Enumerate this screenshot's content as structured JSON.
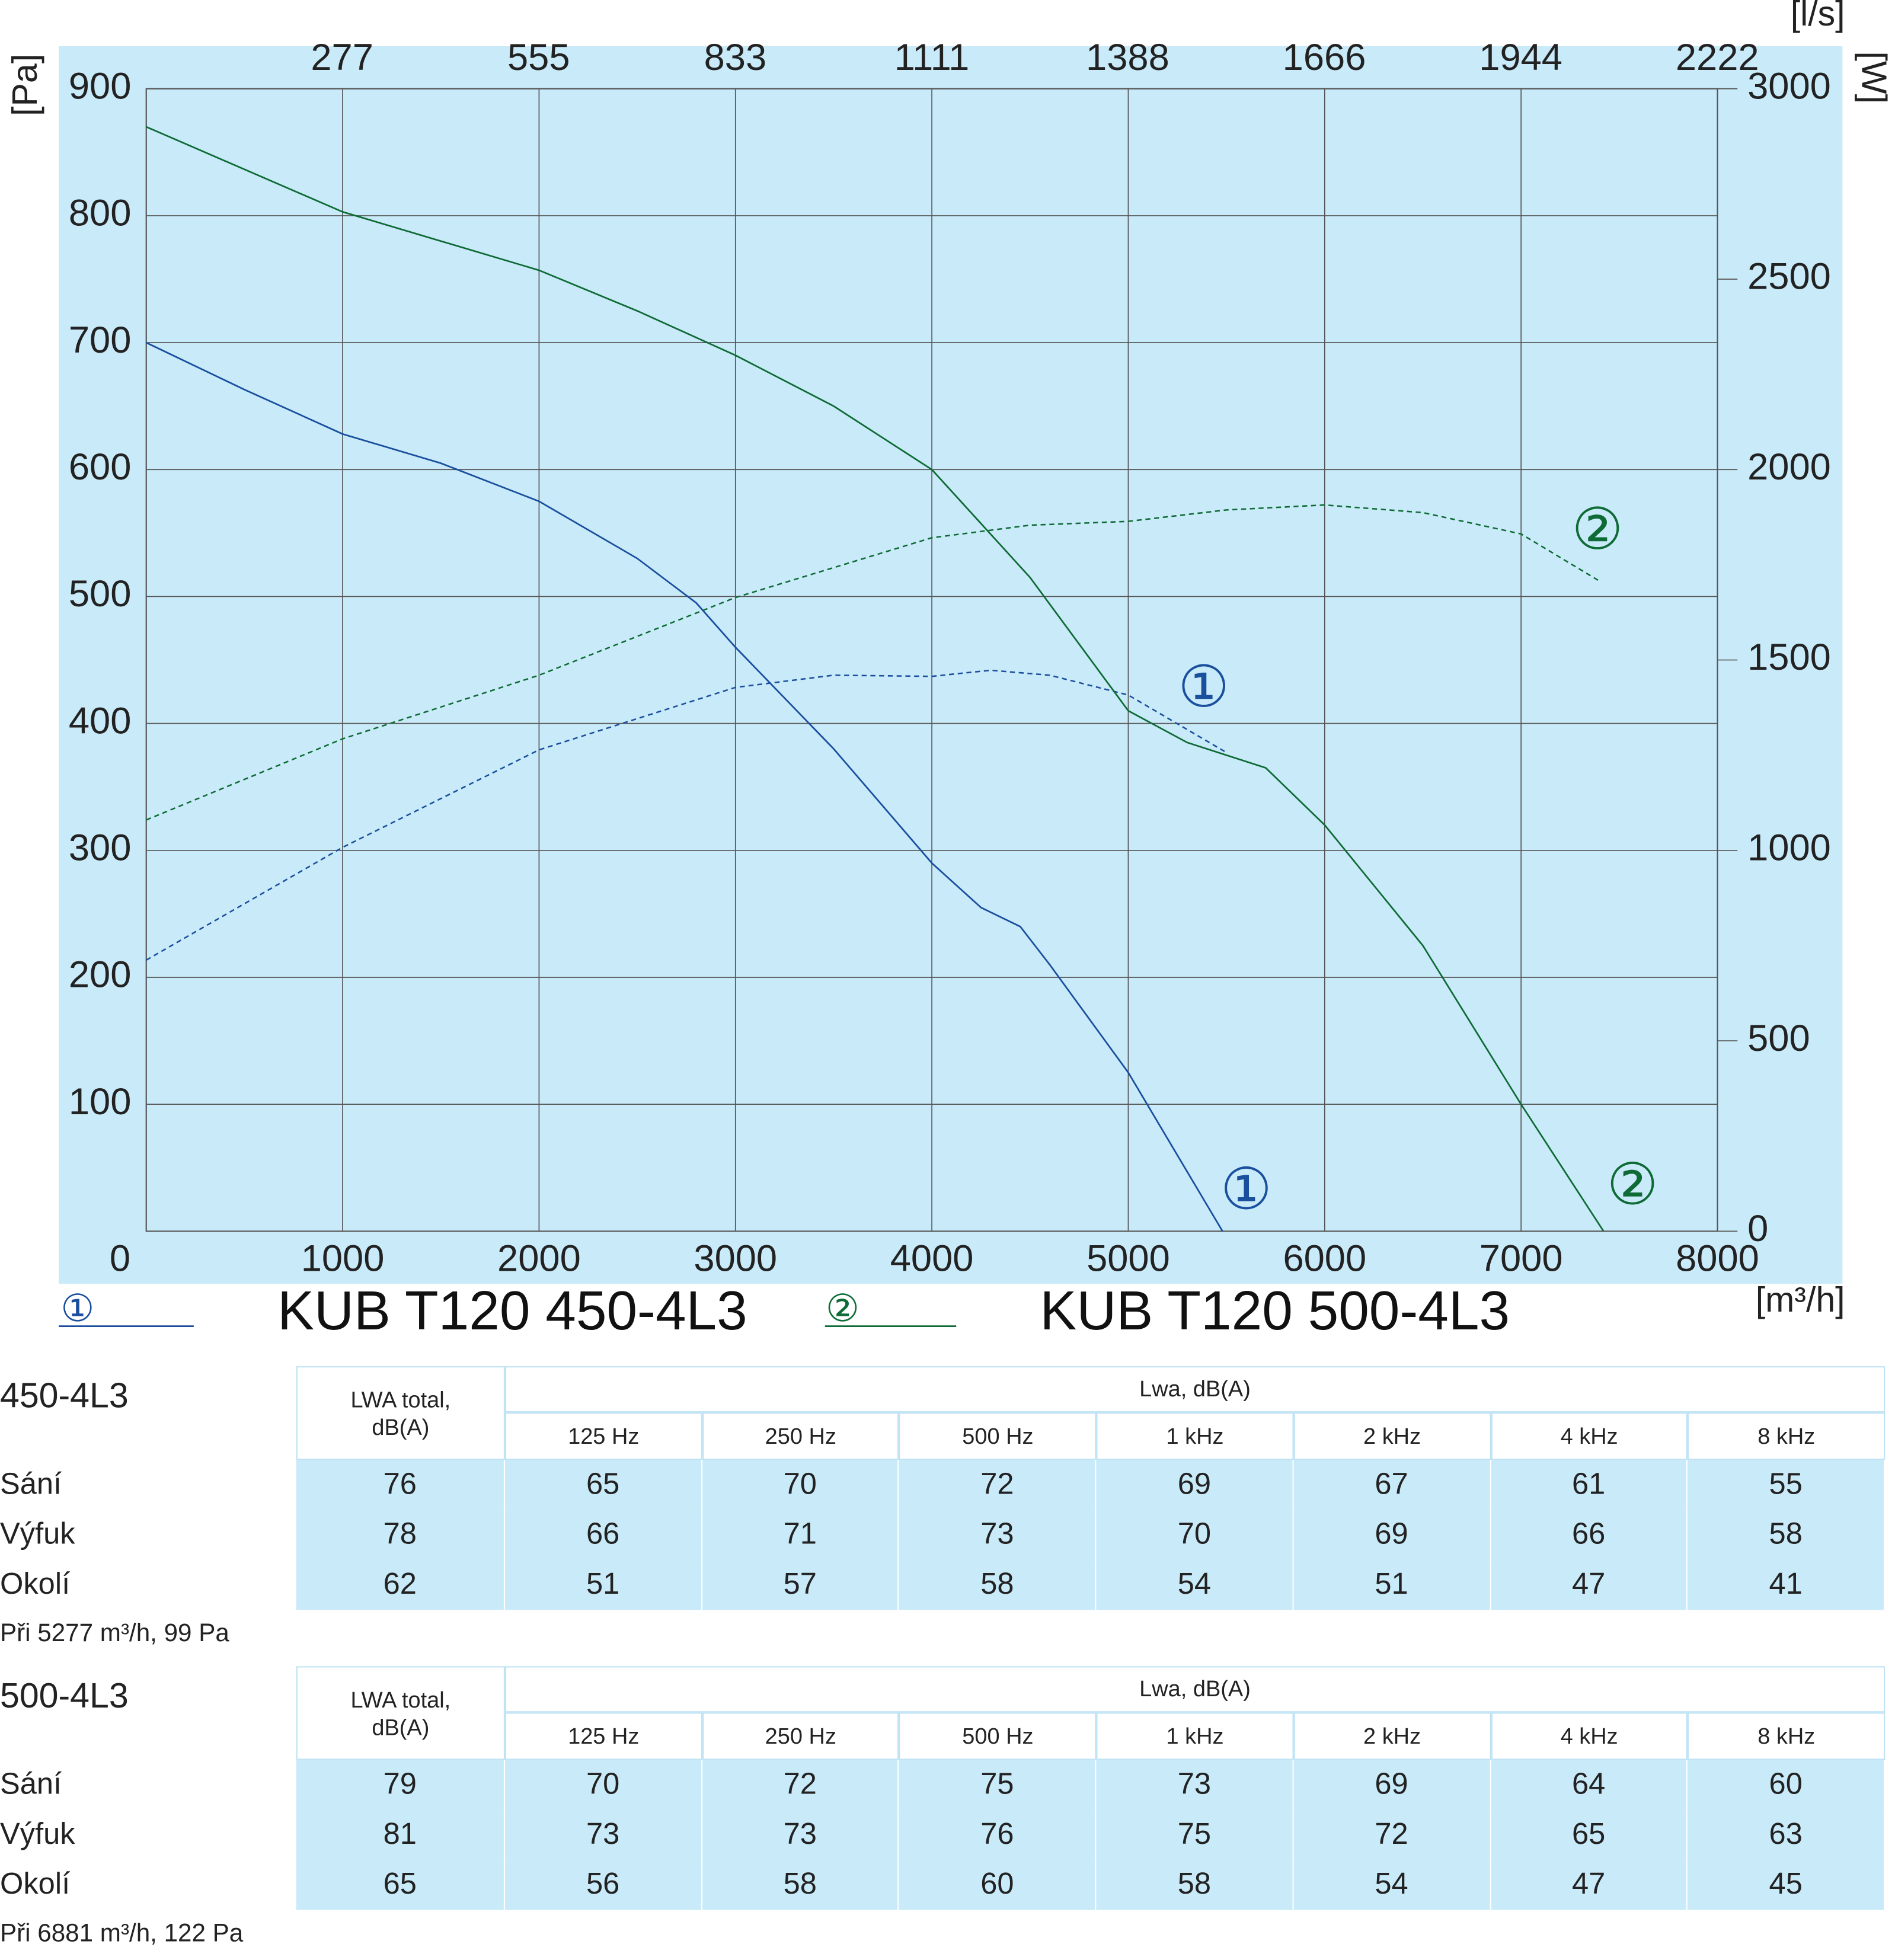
{
  "chart_data": {
    "type": "line",
    "x_label": "[m³/h]",
    "y_label": "[Pa]",
    "y2_label": "[W]",
    "x2_label": "[l/s]",
    "xlim": [
      0,
      8000
    ],
    "xticks": [
      0,
      1000,
      2000,
      3000,
      4000,
      5000,
      6000,
      7000,
      8000
    ],
    "x2lim": [
      0,
      2222.2
    ],
    "x2ticks": [
      277,
      555,
      833,
      1111,
      1388,
      1666,
      1944,
      2222
    ],
    "ylim": [
      0,
      900
    ],
    "yticks": [
      100,
      200,
      300,
      400,
      500,
      600,
      700,
      800,
      900
    ],
    "y2lim": [
      0,
      3000
    ],
    "y2ticks": [
      0,
      500,
      1000,
      1500,
      2000,
      2500,
      3000
    ],
    "grid": true,
    "series": [
      {
        "name": "KUB T120 450-4L3",
        "label": "①",
        "color": "#1a4f9e",
        "x": [
          0,
          500,
          1000,
          1500,
          2000,
          2500,
          2800,
          3000,
          3250,
          3500,
          4000,
          4250,
          4450,
          4600,
          5000,
          5480
        ],
        "values": [
          700,
          663,
          628,
          605,
          575,
          530,
          495,
          460,
          420,
          380,
          290,
          255,
          240,
          210,
          125,
          0
        ],
        "power": {
          "axis": "y2",
          "x": [
            0,
            1000,
            2000,
            3000,
            3500,
            4000,
            4300,
            4600,
            5000,
            5500
          ],
          "values": [
            712,
            1008,
            1264,
            1428,
            1460,
            1457,
            1473,
            1460,
            1408,
            1257
          ]
        }
      },
      {
        "name": "KUB T120 500-4L3",
        "label": "②",
        "color": "#0e6b35",
        "x": [
          0,
          1000,
          1500,
          2000,
          2500,
          3000,
          3500,
          4000,
          4500,
          5000,
          5300,
          5700,
          6000,
          6500,
          7000,
          7420
        ],
        "values": [
          870,
          803,
          780,
          757,
          725,
          690,
          650,
          600,
          515,
          410,
          385,
          365,
          320,
          225,
          100,
          0
        ],
        "power": {
          "axis": "y2",
          "x": [
            0,
            1000,
            2000,
            3000,
            4000,
            4500,
            5000,
            5500,
            6000,
            6500,
            7000,
            7400
          ],
          "values": [
            1080,
            1293,
            1460,
            1664,
            1821,
            1854,
            1864,
            1894,
            1907,
            1887,
            1831,
            1707
          ]
        }
      }
    ]
  },
  "tables": [
    {
      "title": "450-4L3",
      "total_header": "LWA total, dB(A)",
      "band_header": "Lwa, dB(A)",
      "bands": [
        "125 Hz",
        "250 Hz",
        "500 Hz",
        "1 kHz",
        "2 kHz",
        "4 kHz",
        "8 kHz"
      ],
      "rows": [
        {
          "label": "Sání",
          "values": [
            76,
            65,
            70,
            72,
            69,
            67,
            61,
            55
          ]
        },
        {
          "label": "Výfuk",
          "values": [
            78,
            66,
            71,
            73,
            70,
            69,
            66,
            58
          ]
        },
        {
          "label": "Okolí",
          "values": [
            62,
            51,
            57,
            58,
            54,
            51,
            47,
            41
          ]
        }
      ],
      "note": "Při 5277 m³/h, 99 Pa"
    },
    {
      "title": "500-4L3",
      "total_header": "LWA total, dB(A)",
      "band_header": "Lwa, dB(A)",
      "bands": [
        "125 Hz",
        "250 Hz",
        "500 Hz",
        "1 kHz",
        "2 kHz",
        "4 kHz",
        "8 kHz"
      ],
      "rows": [
        {
          "label": "Sání",
          "values": [
            79,
            70,
            72,
            75,
            73,
            69,
            64,
            60
          ]
        },
        {
          "label": "Výfuk",
          "values": [
            81,
            73,
            73,
            76,
            75,
            72,
            65,
            63
          ]
        },
        {
          "label": "Okolí",
          "values": [
            65,
            56,
            58,
            60,
            58,
            54,
            47,
            45
          ]
        }
      ],
      "note": "Při 6881 m³/h, 122 Pa"
    }
  ]
}
